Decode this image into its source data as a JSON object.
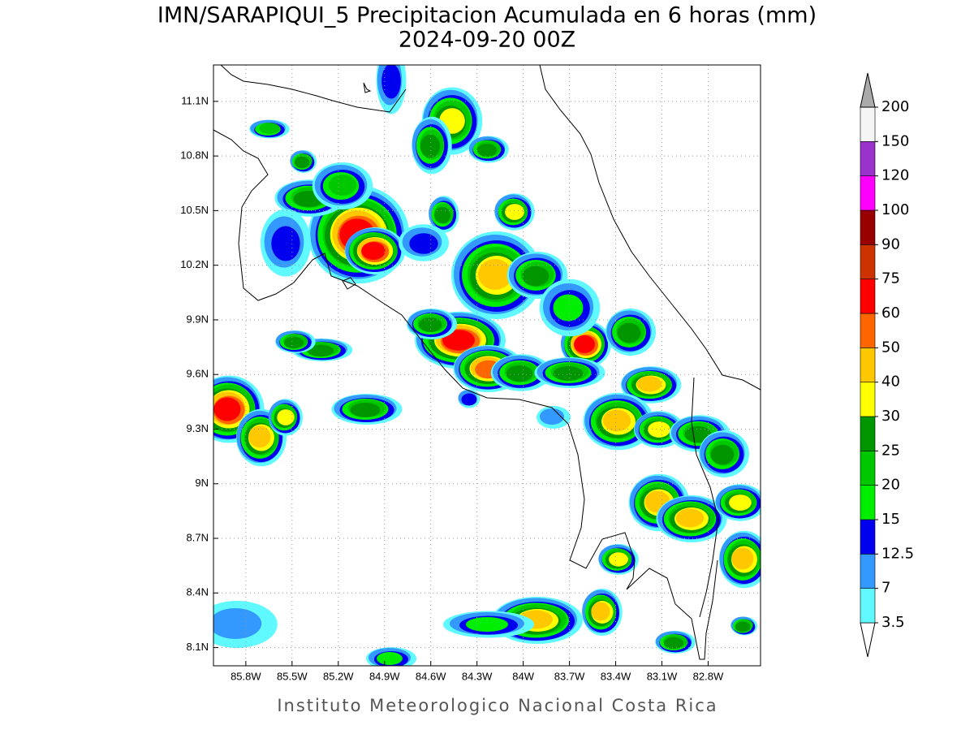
{
  "title": "IMN/SARAPIQUI_5 Precipitacion Acumulada en 6 horas (mm)",
  "subtitle": "2024-09-20 00Z",
  "footer": "Instituto Meteorologico Nacional Costa Rica",
  "map": {
    "type": "map",
    "xlim": [
      -86.01,
      -82.46
    ],
    "ylim": [
      8.0,
      11.3
    ],
    "grid": true,
    "xticks": [
      {
        "value": -85.8,
        "label": "85.8W"
      },
      {
        "value": -85.5,
        "label": "85.5W"
      },
      {
        "value": -85.2,
        "label": "85.2W"
      },
      {
        "value": -84.9,
        "label": "84.9W"
      },
      {
        "value": -84.6,
        "label": "84.6W"
      },
      {
        "value": -84.3,
        "label": "84.3W"
      },
      {
        "value": -84.0,
        "label": "84W"
      },
      {
        "value": -83.7,
        "label": "83.7W"
      },
      {
        "value": -83.4,
        "label": "83.4W"
      },
      {
        "value": -83.1,
        "label": "83.1W"
      },
      {
        "value": -82.8,
        "label": "82.8W"
      }
    ],
    "yticks": [
      {
        "value": 11.1,
        "label": "11.1N"
      },
      {
        "value": 10.8,
        "label": "10.8N"
      },
      {
        "value": 10.5,
        "label": "10.5N"
      },
      {
        "value": 10.2,
        "label": "10.2N"
      },
      {
        "value": 9.9,
        "label": "9.9N"
      },
      {
        "value": 9.6,
        "label": "9.6N"
      },
      {
        "value": 9.3,
        "label": "9.3N"
      },
      {
        "value": 9.0,
        "label": "9N"
      },
      {
        "value": 8.7,
        "label": "8.7N"
      },
      {
        "value": 8.4,
        "label": "8.4N"
      },
      {
        "value": 8.1,
        "label": "8.1N"
      }
    ]
  },
  "colorbar": {
    "levels": [
      3.5,
      7,
      12.5,
      15,
      20,
      25,
      30,
      40,
      50,
      60,
      75,
      90,
      100,
      120,
      150,
      200
    ],
    "colors": [
      "#ffffff",
      "#5ff9ff",
      "#3399ff",
      "#0000ee",
      "#00ee00",
      "#00c800",
      "#009600",
      "#ffff00",
      "#ffc800",
      "#ff6600",
      "#ff0000",
      "#cc3300",
      "#990000",
      "#ff00ff",
      "#9933cc",
      "#f5f5f5",
      "#aaaaaa"
    ]
  }
}
